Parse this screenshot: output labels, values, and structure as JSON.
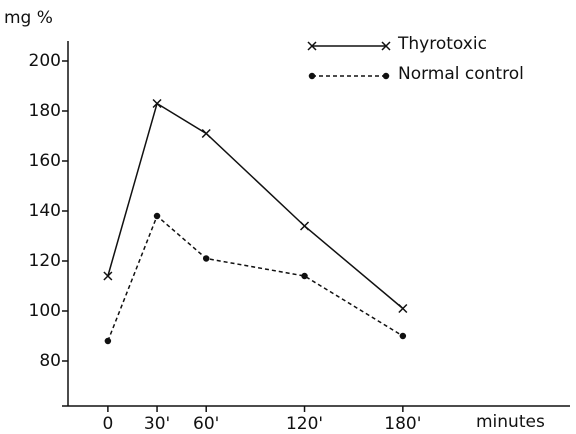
{
  "chart_data": {
    "type": "line",
    "y_label": "mg %",
    "x_label": "minutes",
    "x": [
      0,
      30,
      60,
      120,
      180
    ],
    "series": [
      {
        "name": "Thyrotoxic",
        "color": "#111111",
        "line_style": "solid",
        "marker": "x",
        "values": [
          114,
          183,
          171,
          134,
          101
        ]
      },
      {
        "name": "Normal control",
        "color": "#111111",
        "line_style": "dashed",
        "marker": "dot",
        "values": [
          88,
          138,
          121,
          114,
          90
        ]
      }
    ],
    "xlim": [
      -28,
      282
    ],
    "xticks": [
      0,
      {
        "value": 30,
        "label": "30'"
      },
      {
        "value": 60,
        "label": "60'"
      },
      {
        "value": 120,
        "label": "120'"
      },
      {
        "value": 180,
        "label": "180'"
      }
    ],
    "ylim": [
      62,
      208
    ],
    "yticks": [
      80,
      100,
      120,
      140,
      160,
      180,
      200
    ],
    "grid": false,
    "legend": "upper right"
  }
}
